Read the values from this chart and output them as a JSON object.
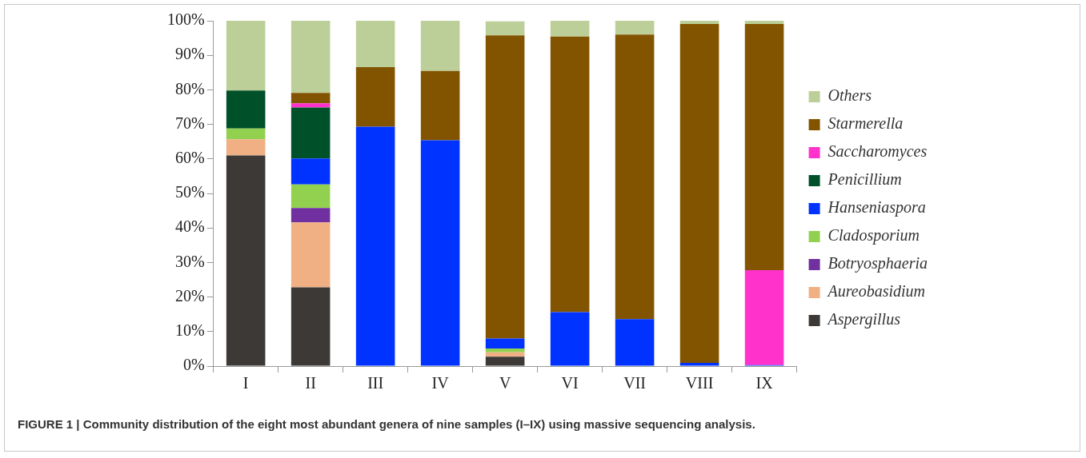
{
  "chart_data": {
    "type": "bar",
    "stacked": true,
    "categories": [
      "I",
      "II",
      "III",
      "IV",
      "V",
      "VI",
      "VII",
      "VIII",
      "IX"
    ],
    "series": [
      {
        "name": "Aspergillus",
        "color": "#3d3937",
        "values": [
          61.0,
          22.8,
          0,
          0,
          2.7,
          0,
          0,
          0,
          0
        ]
      },
      {
        "name": "Aureobasidium",
        "color": "#f0b084",
        "values": [
          4.7,
          18.8,
          0,
          0,
          1.3,
          0,
          0,
          0,
          0
        ]
      },
      {
        "name": "Botryosphaeria",
        "color": "#7030a0",
        "values": [
          0,
          4.2,
          0,
          0,
          0,
          0,
          0,
          0,
          0
        ]
      },
      {
        "name": "Cladosporium",
        "color": "#92d050",
        "values": [
          3.1,
          6.8,
          0,
          0,
          1.1,
          0,
          0,
          0,
          0
        ]
      },
      {
        "name": "Hanseniaspora",
        "color": "#0033ff",
        "values": [
          0,
          7.5,
          69.3,
          65.4,
          2.9,
          15.6,
          13.6,
          0.9,
          0.3
        ]
      },
      {
        "name": "Penicillium",
        "color": "#00502a",
        "values": [
          11.0,
          14.8,
          0,
          0,
          null,
          0,
          0,
          0,
          0
        ]
      },
      {
        "name": "Saccharomyces",
        "color": "#ff33cc",
        "values": [
          0,
          1.2,
          0,
          0,
          0,
          0,
          0,
          0,
          27.5
        ]
      },
      {
        "name": "Starmerella",
        "color": "#835400",
        "values": [
          0,
          3.0,
          17.3,
          20.1,
          87.8,
          79.8,
          82.4,
          98.2,
          71.3
        ]
      },
      {
        "name": "Others",
        "color": "#bccf98",
        "values": [
          20.2,
          20.9,
          13.4,
          14.5,
          4.0,
          4.6,
          4.0,
          0.9,
          0.9
        ]
      }
    ],
    "ylim": [
      0,
      100
    ],
    "yticks": [
      {
        "value": 0,
        "label": "0%"
      },
      {
        "value": 10,
        "label": "10%"
      },
      {
        "value": 20,
        "label": "20%"
      },
      {
        "value": 30,
        "label": "30%"
      },
      {
        "value": 40,
        "label": "40%"
      },
      {
        "value": 50,
        "label": "50%"
      },
      {
        "value": 60,
        "label": "60%"
      },
      {
        "value": 70,
        "label": "70%"
      },
      {
        "value": 80,
        "label": "80%"
      },
      {
        "value": 90,
        "label": "90%"
      },
      {
        "value": 100,
        "label": "100%"
      }
    ],
    "grid": false,
    "legend": "right",
    "annotations": [
      "FIGURE 1 | Community distribution of the eight most abundant genera of nine samples (I–IX) using massive sequencing analysis."
    ]
  }
}
